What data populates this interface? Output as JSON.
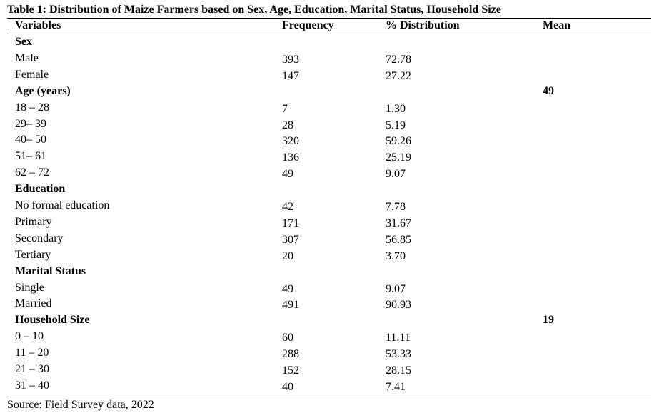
{
  "table": {
    "title": "Table 1: Distribution of Maize Farmers based on Sex, Age, Education, Marital Status, Household Size",
    "headers": [
      "Variables",
      "Frequency",
      "% Distribution",
      "Mean"
    ],
    "rows": [
      {
        "label": "Sex",
        "group": true,
        "freq": "",
        "dist": "",
        "mean": ""
      },
      {
        "label": "Male",
        "group": false,
        "freq": "393",
        "dist": "72.78",
        "mean": ""
      },
      {
        "label": "Female",
        "group": false,
        "freq": "147",
        "dist": "27.22",
        "mean": ""
      },
      {
        "label": "Age (years)",
        "group": true,
        "freq": "",
        "dist": "",
        "mean": "49"
      },
      {
        "label": "18 – 28",
        "group": false,
        "freq": "7",
        "dist": "1.30",
        "mean": ""
      },
      {
        "label": "29– 39",
        "group": false,
        "freq": "28",
        "dist": "5.19",
        "mean": ""
      },
      {
        "label": "40– 50",
        "group": false,
        "freq": "320",
        "dist": "59.26",
        "mean": ""
      },
      {
        "label": "51– 61",
        "group": false,
        "freq": "136",
        "dist": "25.19",
        "mean": ""
      },
      {
        "label": "62 – 72",
        "group": false,
        "freq": "49",
        "dist": "9.07",
        "mean": ""
      },
      {
        "label": "Education",
        "group": true,
        "freq": "",
        "dist": "",
        "mean": ""
      },
      {
        "label": "No formal education",
        "group": false,
        "freq": "42",
        "dist": "7.78",
        "mean": ""
      },
      {
        "label": "Primary",
        "group": false,
        "freq": "171",
        "dist": "31.67",
        "mean": ""
      },
      {
        "label": "Secondary",
        "group": false,
        "freq": "307",
        "dist": "56.85",
        "mean": ""
      },
      {
        "label": "Tertiary",
        "group": false,
        "freq": "20",
        "dist": "3.70",
        "mean": ""
      },
      {
        "label": "Marital Status",
        "group": true,
        "freq": "",
        "dist": "",
        "mean": ""
      },
      {
        "label": "Single",
        "group": false,
        "freq": "49",
        "dist": "9.07",
        "mean": ""
      },
      {
        "label": "Married",
        "group": false,
        "freq": "491",
        "dist": "90.93",
        "mean": ""
      },
      {
        "label": "Household Size",
        "group": true,
        "freq": "",
        "dist": "",
        "mean": "19"
      },
      {
        "label": "0 – 10",
        "group": false,
        "freq": "60",
        "dist": "11.11",
        "mean": ""
      },
      {
        "label": "11 – 20",
        "group": false,
        "freq": "288",
        "dist": "53.33",
        "mean": ""
      },
      {
        "label": "21 – 30",
        "group": false,
        "freq": "152",
        "dist": "28.15",
        "mean": ""
      },
      {
        "label": "31 – 40",
        "group": false,
        "freq": "40",
        "dist": "7.41",
        "mean": ""
      }
    ],
    "source": "Source: Field Survey data, 2022"
  }
}
